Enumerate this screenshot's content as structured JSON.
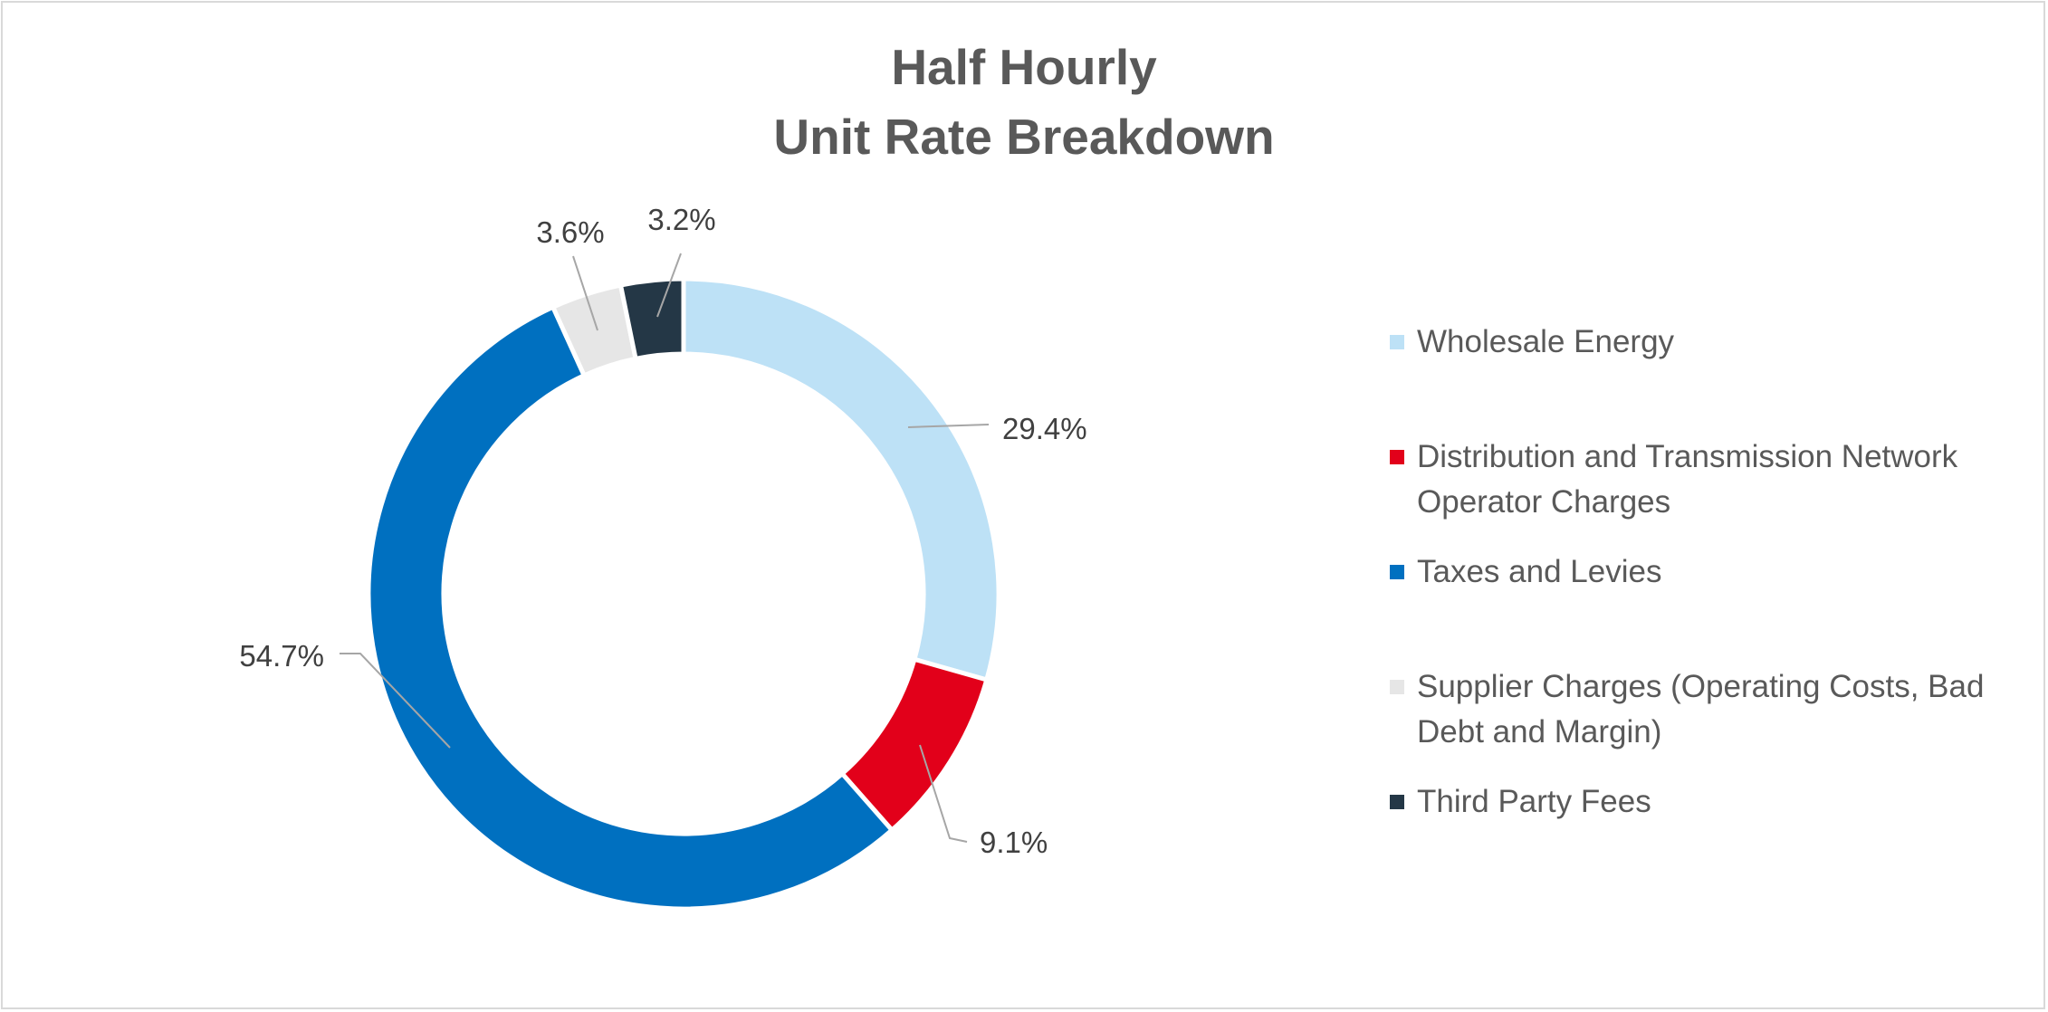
{
  "chart_data": {
    "type": "pie",
    "variant": "donut",
    "title_lines": [
      "Half Hourly",
      "Unit Rate Breakdown"
    ],
    "slices": [
      {
        "label": "Wholesale Energy",
        "value": 29.4,
        "display": "29.4%",
        "color": "#BDE1F6"
      },
      {
        "label": "Distribution and Transmission Network Operator Charges",
        "value": 9.1,
        "display": "9.1%",
        "color": "#E2001A"
      },
      {
        "label": "Taxes and Levies",
        "value": 54.7,
        "display": "54.7%",
        "color": "#0070C0"
      },
      {
        "label": "Supplier Charges (Operating Costs, Bad Debt and Margin)",
        "value": 3.6,
        "display": "3.6%",
        "color": "#E6E6E6"
      },
      {
        "label": "Third Party Fees",
        "value": 3.2,
        "display": "3.2%",
        "color": "#243746"
      }
    ],
    "legend_position": "right",
    "label_color": "#404040",
    "leader_color": "#A6A6A6"
  }
}
